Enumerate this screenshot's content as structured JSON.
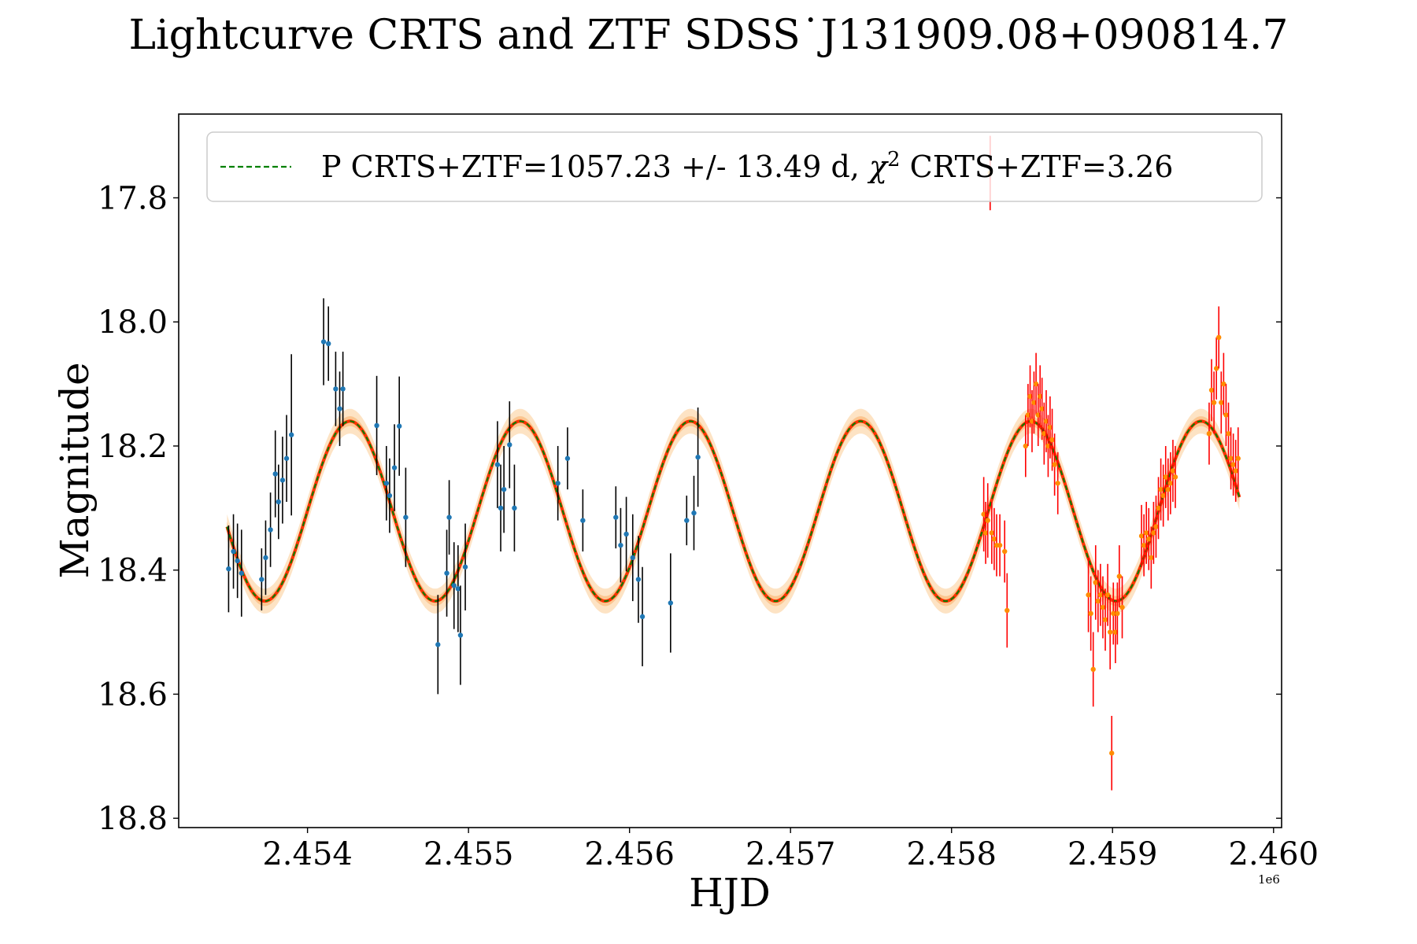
{
  "chart_data": {
    "type": "scatter",
    "title": "Lightcurve CRTS and ZTF SDSS˙J131909.08+090814.7",
    "xlabel": "HJD",
    "ylabel": "Magnitude",
    "x_offset_label": "1e6",
    "xlim": [
      2453200,
      2460050
    ],
    "ylim": [
      18.815,
      17.665
    ],
    "y_inverted": true,
    "x_ticks": [
      2454000,
      2455000,
      2456000,
      2457000,
      2458000,
      2459000,
      2460000
    ],
    "x_tick_labels": [
      "2.454",
      "2.455",
      "2.456",
      "2.457",
      "2.458",
      "2.459",
      "2.460"
    ],
    "y_ticks": [
      17.8,
      18.0,
      18.2,
      18.4,
      18.6,
      18.8
    ],
    "y_tick_labels": [
      "17.8",
      "18.0",
      "18.2",
      "18.4",
      "18.6",
      "18.8"
    ],
    "grid": false,
    "legend": {
      "placement": "top",
      "entries": [
        {
          "prefix": "P CRTS+ZTF=1057.23 +/- 13.49 d, ",
          "chi": "χ",
          "sup": "2",
          "suffix": " CRTS+ZTF=3.26",
          "color": "#008000",
          "style": "dashed"
        }
      ]
    },
    "model": {
      "name": "P CRTS+ZTF=1057.23 +/- 13.49 d",
      "period": 1057.23,
      "mean": 18.305,
      "amplitude": 0.145,
      "phase_ref_min": 2453735,
      "x_start": 2453500,
      "x_end": 2459790,
      "band_inner": 0.008,
      "band_outer": 0.02,
      "color_line": "#008000",
      "color_core": "#ff3300",
      "color_band": "#fcd9b0"
    },
    "series": [
      {
        "name": "CRTS",
        "color": "#1f77b4",
        "err_color": "#000000",
        "points": [
          [
            2453510,
            18.398,
            0.07
          ],
          [
            2453540,
            18.37,
            0.06
          ],
          [
            2453565,
            18.385,
            0.06
          ],
          [
            2453590,
            18.405,
            0.07
          ],
          [
            2453715,
            18.415,
            0.05
          ],
          [
            2453740,
            18.38,
            0.06
          ],
          [
            2453770,
            18.335,
            0.06
          ],
          [
            2453800,
            18.245,
            0.07
          ],
          [
            2453820,
            18.29,
            0.06
          ],
          [
            2453845,
            18.255,
            0.07
          ],
          [
            2453870,
            18.22,
            0.07
          ],
          [
            2453900,
            18.182,
            0.13
          ],
          [
            2454100,
            18.032,
            0.07
          ],
          [
            2454130,
            18.035,
            0.06
          ],
          [
            2454175,
            18.108,
            0.06
          ],
          [
            2454200,
            18.14,
            0.06
          ],
          [
            2454220,
            18.108,
            0.06
          ],
          [
            2454430,
            18.167,
            0.08
          ],
          [
            2454490,
            18.26,
            0.06
          ],
          [
            2454510,
            18.28,
            0.06
          ],
          [
            2454540,
            18.235,
            0.07
          ],
          [
            2454570,
            18.168,
            0.08
          ],
          [
            2454610,
            18.315,
            0.08
          ],
          [
            2454810,
            18.52,
            0.08
          ],
          [
            2454865,
            18.405,
            0.07
          ],
          [
            2454880,
            18.315,
            0.06
          ],
          [
            2454910,
            18.425,
            0.07
          ],
          [
            2454935,
            18.43,
            0.07
          ],
          [
            2454950,
            18.505,
            0.08
          ],
          [
            2454980,
            18.395,
            0.07
          ],
          [
            2455180,
            18.23,
            0.07
          ],
          [
            2455200,
            18.3,
            0.07
          ],
          [
            2455220,
            18.27,
            0.07
          ],
          [
            2455255,
            18.198,
            0.07
          ],
          [
            2455285,
            18.3,
            0.07
          ],
          [
            2455555,
            18.26,
            0.06
          ],
          [
            2455615,
            18.22,
            0.05
          ],
          [
            2455710,
            18.32,
            0.05
          ],
          [
            2455915,
            18.315,
            0.05
          ],
          [
            2455945,
            18.36,
            0.06
          ],
          [
            2455980,
            18.342,
            0.06
          ],
          [
            2456020,
            18.38,
            0.07
          ],
          [
            2456055,
            18.415,
            0.07
          ],
          [
            2456080,
            18.475,
            0.08
          ],
          [
            2456255,
            18.453,
            0.08
          ],
          [
            2456355,
            18.32,
            0.04
          ],
          [
            2456400,
            18.308,
            0.06
          ],
          [
            2456425,
            18.218,
            0.08
          ]
        ]
      },
      {
        "name": "ZTF",
        "color": "#ff8c00",
        "err_color": "#ff0000",
        "points": [
          [
            2458200,
            18.31,
            0.06
          ],
          [
            2458212,
            18.34,
            0.05
          ],
          [
            2458225,
            18.32,
            0.06
          ],
          [
            2458240,
            17.76,
            0.06
          ],
          [
            2458250,
            18.34,
            0.05
          ],
          [
            2458265,
            18.35,
            0.05
          ],
          [
            2458280,
            18.36,
            0.05
          ],
          [
            2458300,
            18.36,
            0.05
          ],
          [
            2458330,
            18.37,
            0.05
          ],
          [
            2458345,
            18.465,
            0.06
          ],
          [
            2458460,
            18.2,
            0.05
          ],
          [
            2458475,
            18.15,
            0.05
          ],
          [
            2458488,
            18.12,
            0.05
          ],
          [
            2458500,
            18.16,
            0.05
          ],
          [
            2458512,
            18.13,
            0.05
          ],
          [
            2458525,
            18.1,
            0.05
          ],
          [
            2458538,
            18.15,
            0.05
          ],
          [
            2458550,
            18.12,
            0.05
          ],
          [
            2458562,
            18.14,
            0.05
          ],
          [
            2458575,
            18.18,
            0.05
          ],
          [
            2458588,
            18.16,
            0.05
          ],
          [
            2458600,
            18.2,
            0.05
          ],
          [
            2458612,
            18.17,
            0.05
          ],
          [
            2458625,
            18.19,
            0.05
          ],
          [
            2458640,
            18.23,
            0.05
          ],
          [
            2458660,
            18.26,
            0.05
          ],
          [
            2458850,
            18.44,
            0.06
          ],
          [
            2458865,
            18.47,
            0.06
          ],
          [
            2458880,
            18.56,
            0.06
          ],
          [
            2458895,
            18.42,
            0.06
          ],
          [
            2458910,
            18.45,
            0.05
          ],
          [
            2458925,
            18.44,
            0.05
          ],
          [
            2458940,
            18.46,
            0.05
          ],
          [
            2458955,
            18.48,
            0.05
          ],
          [
            2458970,
            18.44,
            0.05
          ],
          [
            2458985,
            18.5,
            0.06
          ],
          [
            2458995,
            18.695,
            0.06
          ],
          [
            2459005,
            18.47,
            0.05
          ],
          [
            2459018,
            18.5,
            0.05
          ],
          [
            2459030,
            18.47,
            0.05
          ],
          [
            2459042,
            18.41,
            0.05
          ],
          [
            2459060,
            18.46,
            0.05
          ],
          [
            2459180,
            18.345,
            0.05
          ],
          [
            2459195,
            18.36,
            0.05
          ],
          [
            2459210,
            18.34,
            0.05
          ],
          [
            2459225,
            18.35,
            0.05
          ],
          [
            2459240,
            18.38,
            0.05
          ],
          [
            2459255,
            18.34,
            0.05
          ],
          [
            2459270,
            18.33,
            0.05
          ],
          [
            2459285,
            18.3,
            0.05
          ],
          [
            2459300,
            18.27,
            0.05
          ],
          [
            2459315,
            18.28,
            0.05
          ],
          [
            2459330,
            18.25,
            0.05
          ],
          [
            2459345,
            18.27,
            0.05
          ],
          [
            2459360,
            18.26,
            0.05
          ],
          [
            2459375,
            18.24,
            0.05
          ],
          [
            2459390,
            18.25,
            0.05
          ],
          [
            2459600,
            18.18,
            0.05
          ],
          [
            2459615,
            18.11,
            0.05
          ],
          [
            2459630,
            18.13,
            0.05
          ],
          [
            2459645,
            18.075,
            0.05
          ],
          [
            2459660,
            18.025,
            0.05
          ],
          [
            2459675,
            18.13,
            0.05
          ],
          [
            2459690,
            18.1,
            0.05
          ],
          [
            2459705,
            18.15,
            0.05
          ],
          [
            2459720,
            18.18,
            0.05
          ],
          [
            2459735,
            18.22,
            0.05
          ],
          [
            2459750,
            18.23,
            0.05
          ],
          [
            2459765,
            18.24,
            0.05
          ],
          [
            2459780,
            18.22,
            0.05
          ]
        ]
      }
    ]
  }
}
